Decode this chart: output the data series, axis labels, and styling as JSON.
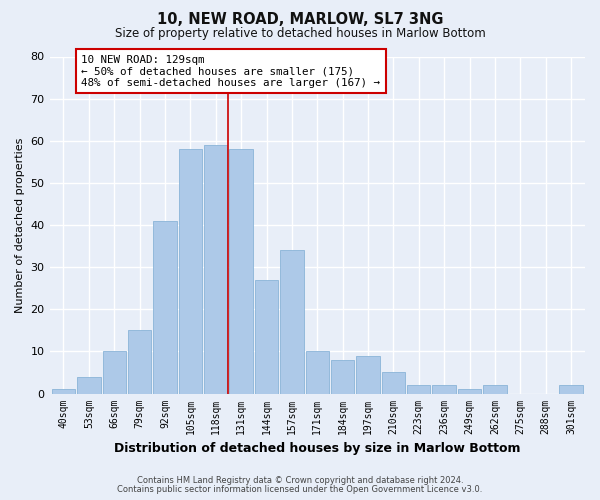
{
  "title": "10, NEW ROAD, MARLOW, SL7 3NG",
  "subtitle": "Size of property relative to detached houses in Marlow Bottom",
  "xlabel": "Distribution of detached houses by size in Marlow Bottom",
  "ylabel": "Number of detached properties",
  "footer_line1": "Contains HM Land Registry data © Crown copyright and database right 2024.",
  "footer_line2": "Contains public sector information licensed under the Open Government Licence v3.0.",
  "bar_labels": [
    "40sqm",
    "53sqm",
    "66sqm",
    "79sqm",
    "92sqm",
    "105sqm",
    "118sqm",
    "131sqm",
    "144sqm",
    "157sqm",
    "171sqm",
    "184sqm",
    "197sqm",
    "210sqm",
    "223sqm",
    "236sqm",
    "249sqm",
    "262sqm",
    "275sqm",
    "288sqm",
    "301sqm"
  ],
  "bar_values": [
    1,
    4,
    10,
    15,
    41,
    58,
    59,
    58,
    27,
    34,
    10,
    8,
    9,
    5,
    2,
    2,
    1,
    2,
    0,
    0,
    2
  ],
  "bar_color": "#adc9e8",
  "bar_edge_color": "#8ab4d8",
  "vline_x": 7,
  "vline_color": "#cc0000",
  "ylim": [
    0,
    80
  ],
  "yticks": [
    0,
    10,
    20,
    30,
    40,
    50,
    60,
    70,
    80
  ],
  "annotation_title": "10 NEW ROAD: 129sqm",
  "annotation_line1": "← 50% of detached houses are smaller (175)",
  "annotation_line2": "48% of semi-detached houses are larger (167) →",
  "bg_color": "#e8eef8",
  "plot_bg_color": "#e8eef8",
  "grid_color": "#ffffff",
  "title_fontsize": 10.5,
  "subtitle_fontsize": 8.5
}
